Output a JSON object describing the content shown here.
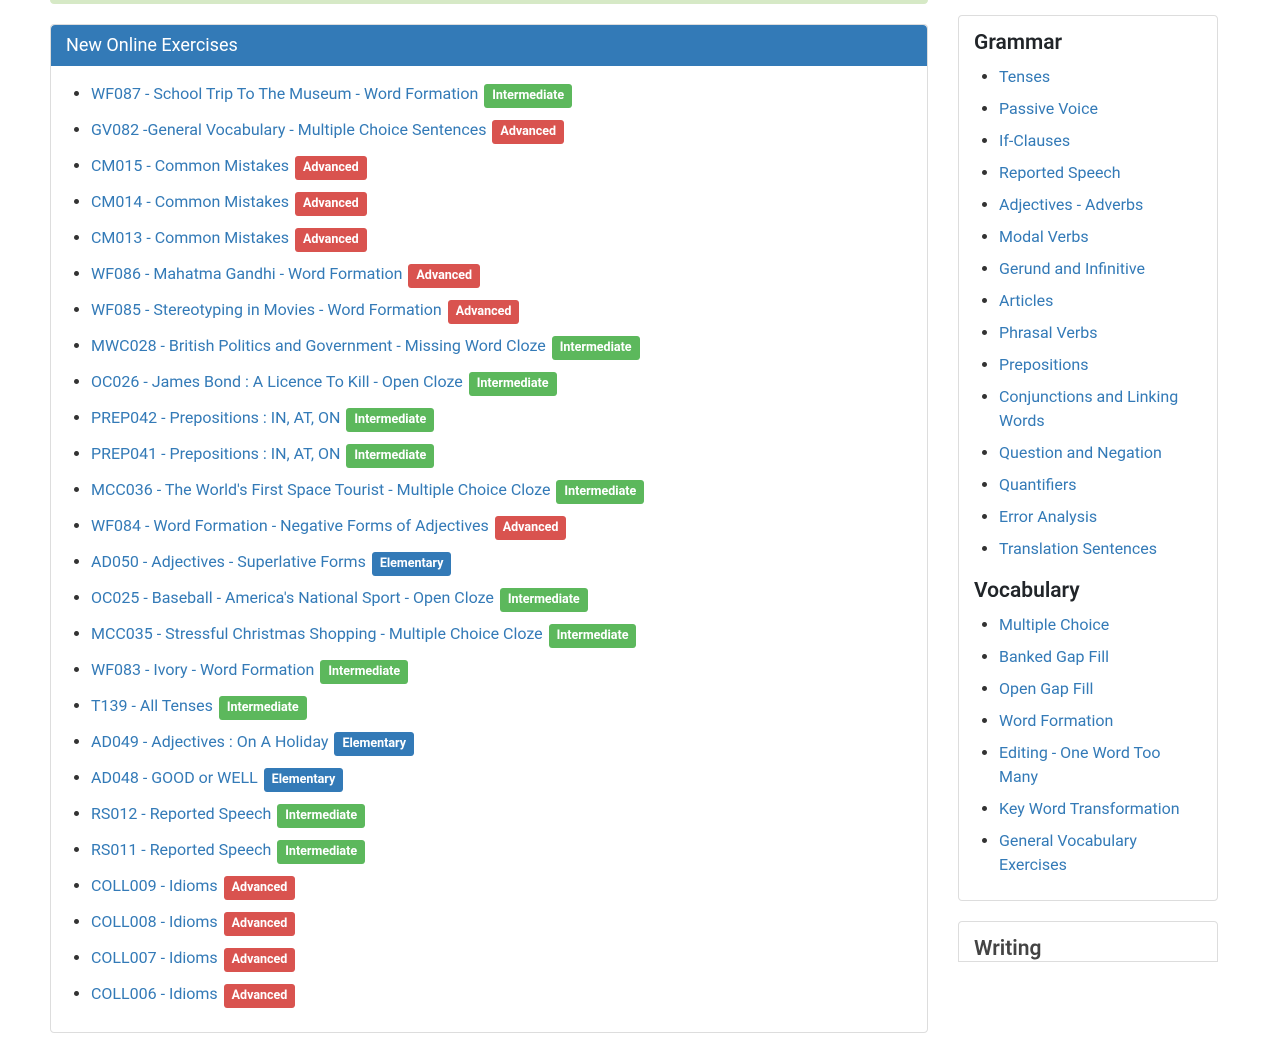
{
  "panel_title": "New Online Exercises",
  "exercises": [
    {
      "title": "WF087 - School Trip To The Museum - Word Formation",
      "level": "Intermediate"
    },
    {
      "title": "GV082 -General Vocabulary - Multiple Choice Sentences",
      "level": "Advanced"
    },
    {
      "title": "CM015 - Common Mistakes",
      "level": "Advanced"
    },
    {
      "title": "CM014 - Common Mistakes",
      "level": "Advanced"
    },
    {
      "title": "CM013 - Common Mistakes",
      "level": "Advanced"
    },
    {
      "title": "WF086 - Mahatma Gandhi - Word Formation",
      "level": "Advanced"
    },
    {
      "title": "WF085 - Stereotyping in Movies - Word Formation",
      "level": "Advanced"
    },
    {
      "title": "MWC028 - British Politics and Government - Missing Word Cloze",
      "level": "Intermediate"
    },
    {
      "title": "OC026 - James Bond : A Licence To Kill - Open Cloze",
      "level": "Intermediate"
    },
    {
      "title": "PREP042 - Prepositions : IN, AT, ON",
      "level": "Intermediate"
    },
    {
      "title": "PREP041 - Prepositions : IN, AT, ON",
      "level": "Intermediate"
    },
    {
      "title": "MCC036 - The World's First Space Tourist - Multiple Choice Cloze",
      "level": "Intermediate"
    },
    {
      "title": "WF084 - Word Formation - Negative Forms of Adjectives",
      "level": "Advanced"
    },
    {
      "title": "AD050 - Adjectives - Superlative Forms",
      "level": "Elementary"
    },
    {
      "title": "OC025 - Baseball - America's National Sport - Open Cloze",
      "level": "Intermediate"
    },
    {
      "title": "MCC035 - Stressful Christmas Shopping - Multiple Choice Cloze",
      "level": "Intermediate"
    },
    {
      "title": "WF083 - Ivory - Word Formation",
      "level": "Intermediate"
    },
    {
      "title": "T139 - All Tenses",
      "level": "Intermediate"
    },
    {
      "title": "AD049 - Adjectives : On A Holiday",
      "level": "Elementary"
    },
    {
      "title": "AD048 - GOOD or WELL",
      "level": "Elementary"
    },
    {
      "title": "RS012 - Reported Speech",
      "level": "Intermediate"
    },
    {
      "title": "RS011 - Reported Speech",
      "level": "Intermediate"
    },
    {
      "title": "COLL009 - Idioms",
      "level": "Advanced"
    },
    {
      "title": "COLL008 - Idioms",
      "level": "Advanced"
    },
    {
      "title": "COLL007 - Idioms",
      "level": "Advanced"
    },
    {
      "title": "COLL006 - Idioms",
      "level": "Advanced"
    }
  ],
  "level_classes": {
    "Intermediate": "label-intermediate",
    "Advanced": "label-advanced",
    "Elementary": "label-elementary"
  },
  "sidebar": {
    "grammar_heading": "Grammar",
    "grammar_links": [
      "Tenses",
      "Passive Voice",
      "If-Clauses",
      "Reported Speech",
      "Adjectives - Adverbs",
      "Modal Verbs",
      "Gerund and Infinitive",
      "Articles",
      "Phrasal Verbs",
      "Prepositions",
      "Conjunctions and Linking Words",
      "Question and Negation",
      "Quantifiers",
      "Error Analysis",
      "Translation Sentences"
    ],
    "vocabulary_heading": "Vocabulary",
    "vocabulary_links": [
      "Multiple Choice",
      "Banked Gap Fill",
      "Open Gap Fill",
      "Word Formation",
      "Editing - One Word Too Many",
      "Key Word Transformation",
      "General Vocabulary Exercises"
    ],
    "writing_heading": "Writing"
  }
}
